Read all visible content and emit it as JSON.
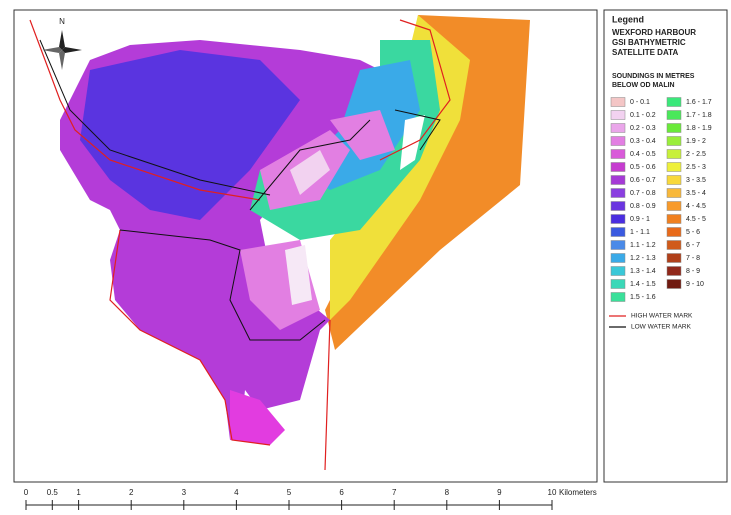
{
  "north": "N",
  "legend": {
    "title": "Legend",
    "heading_lines": [
      "WEXFORD HARBOUR",
      "GSI BATHYMETRIC",
      "SATELLITE DATA"
    ],
    "units_lines": [
      "SOUNDINGS IN METRES",
      "BELOW OD MALIN"
    ],
    "classes": [
      {
        "label": "0 - 0.1",
        "color": "#f4c6c6"
      },
      {
        "label": "0.1 - 0.2",
        "color": "#f2d2f0"
      },
      {
        "label": "0.2 - 0.3",
        "color": "#eaa6ea"
      },
      {
        "label": "0.3 - 0.4",
        "color": "#e27fe2"
      },
      {
        "label": "0.4 - 0.5",
        "color": "#d95ad9"
      },
      {
        "label": "0.5 - 0.6",
        "color": "#c63cd0"
      },
      {
        "label": "0.6 - 0.7",
        "color": "#a53ad6"
      },
      {
        "label": "0.7 - 0.8",
        "color": "#8a3ee0"
      },
      {
        "label": "0.8 - 0.9",
        "color": "#6a34e0"
      },
      {
        "label": "0.9 - 1",
        "color": "#4a2ee0"
      },
      {
        "label": "1 - 1.1",
        "color": "#3a5ae0"
      },
      {
        "label": "1.1 - 1.2",
        "color": "#4a8ae8"
      },
      {
        "label": "1.2 - 1.3",
        "color": "#3aaae8"
      },
      {
        "label": "1.3 - 1.4",
        "color": "#3ac8d8"
      },
      {
        "label": "1.4 - 1.5",
        "color": "#3ad8b8"
      },
      {
        "label": "1.5 - 1.6",
        "color": "#3ae09a"
      },
      {
        "label": "1.6 - 1.7",
        "color": "#3ae87a"
      },
      {
        "label": "1.7 - 1.8",
        "color": "#4ae85a"
      },
      {
        "label": "1.8 - 1.9",
        "color": "#6aea3a"
      },
      {
        "label": "1.9 - 2",
        "color": "#9aee3a"
      },
      {
        "label": "2 - 2.5",
        "color": "#c8f03a"
      },
      {
        "label": "2.5 - 3",
        "color": "#eef03a"
      },
      {
        "label": "3 - 3.5",
        "color": "#f8d83a"
      },
      {
        "label": "3.5 - 4",
        "color": "#f8b83a"
      },
      {
        "label": "4 - 4.5",
        "color": "#f89a2a"
      },
      {
        "label": "4.5 - 5",
        "color": "#f08020"
      },
      {
        "label": "5 - 6",
        "color": "#e86a1a"
      },
      {
        "label": "6 - 7",
        "color": "#d05a1a"
      },
      {
        "label": "7 - 8",
        "color": "#b0401a"
      },
      {
        "label": "8 - 9",
        "color": "#90281a"
      },
      {
        "label": "9 - 10",
        "color": "#701a10"
      }
    ],
    "lines": [
      {
        "label": "HIGH WATER MARK",
        "color": "#e02020"
      },
      {
        "label": "LOW WATER MARK",
        "color": "#111111"
      }
    ]
  },
  "scale_bar": {
    "ticks": [
      0,
      0.5,
      1,
      2,
      3,
      4,
      5,
      6,
      7,
      8,
      9,
      10
    ],
    "unit": "Kilometers"
  }
}
